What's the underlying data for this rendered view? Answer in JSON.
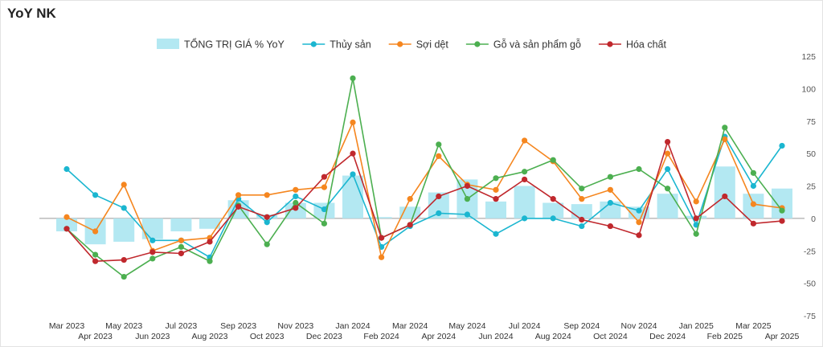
{
  "title": "YoY NK",
  "chart_data": {
    "type": "bar+line",
    "categories": [
      "Mar 2023",
      "Apr 2023",
      "May 2023",
      "Jun 2023",
      "Jul 2023",
      "Aug 2023",
      "Sep 2023",
      "Oct 2023",
      "Nov 2023",
      "Dec 2023",
      "Jan 2024",
      "Feb 2024",
      "Mar 2024",
      "Apr 2024",
      "May 2024",
      "Jun 2024",
      "Jul 2024",
      "Aug 2024",
      "Sep 2024",
      "Oct 2024",
      "Nov 2024",
      "Dec 2024",
      "Jan 2025",
      "Feb 2025",
      "Mar 2025",
      "Apr 2025"
    ],
    "bar_series": {
      "name": "TỔNG TRỊ GIÁ % YoY",
      "color": "#b3e8f2",
      "values": [
        -10,
        -20,
        -18,
        -16,
        -10,
        -8,
        14,
        3,
        12,
        12,
        33,
        1,
        9,
        20,
        30,
        13,
        25,
        12,
        11,
        13,
        9,
        19,
        2,
        40,
        19,
        23
      ]
    },
    "series": [
      {
        "name": "Thủy sản",
        "color": "#1bb6d0",
        "values": [
          38,
          18,
          8,
          -17,
          -17,
          -30,
          15,
          -3,
          17,
          7,
          34,
          -22,
          -6,
          4,
          3,
          -12,
          0,
          0,
          -6,
          12,
          6,
          38,
          -5,
          63,
          25,
          56
        ]
      },
      {
        "name": "Sợi dệt",
        "color": "#f5861f",
        "values": [
          1,
          -10,
          26,
          -25,
          -17,
          -15,
          18,
          18,
          22,
          24,
          74,
          -30,
          15,
          48,
          26,
          22,
          60,
          44,
          15,
          22,
          -3,
          50,
          13,
          61,
          11,
          8
        ]
      },
      {
        "name": "Gỗ và sản phẩm gỗ",
        "color": "#4caf50",
        "values": [
          -8,
          -28,
          -45,
          -31,
          -22,
          -33,
          10,
          -20,
          12,
          -4,
          108,
          -15,
          -5,
          57,
          15,
          31,
          36,
          45,
          23,
          32,
          38,
          23,
          -12,
          70,
          35,
          6
        ]
      },
      {
        "name": "Hóa chất",
        "color": "#c0282d",
        "values": [
          -8,
          -33,
          -32,
          -26,
          -27,
          -18,
          9,
          1,
          8,
          32,
          50,
          -15,
          -5,
          17,
          25,
          15,
          30,
          15,
          -1,
          -6,
          -13,
          59,
          0,
          17,
          -4,
          -2
        ]
      }
    ],
    "yaxis": {
      "min": -75,
      "max": 125,
      "ticks": [
        125,
        100,
        75,
        50,
        25,
        0,
        -25,
        -50,
        -75
      ]
    },
    "legend_position": "top"
  }
}
